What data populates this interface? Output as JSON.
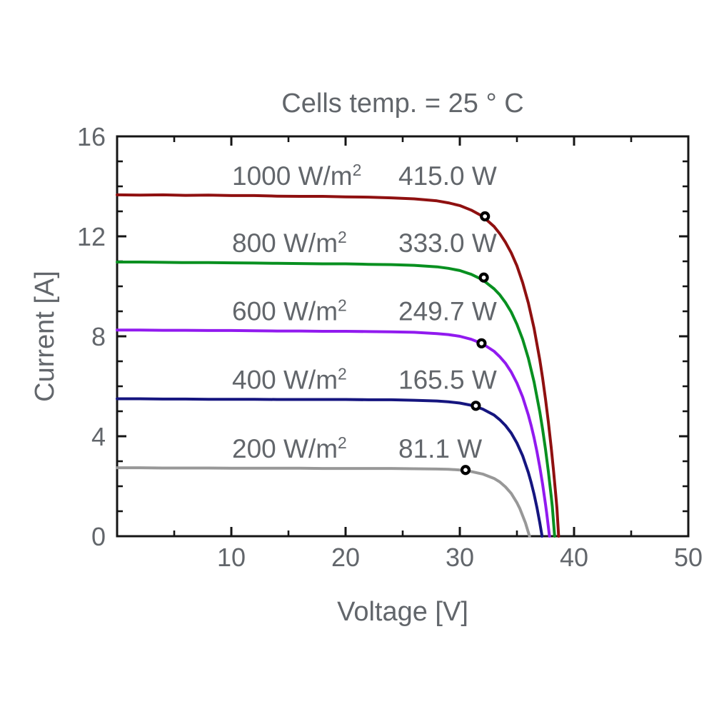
{
  "title": "Cells temp. = 25 ° C",
  "chart_data": {
    "type": "line",
    "title": "Cells temp. = 25 ° C",
    "xlabel": "Voltage [V]",
    "ylabel": "Current [A]",
    "xlim": [
      0,
      50
    ],
    "ylim": [
      0,
      16
    ],
    "xticks_major": [
      10,
      20,
      30,
      40,
      50
    ],
    "xticks_minor_step": 5,
    "yticks_major": [
      0,
      4,
      8,
      12,
      16
    ],
    "yticks_minor_step": 1,
    "grid": false,
    "text_color": "#62666b",
    "axis_color": "#151515",
    "series": [
      {
        "irradiance_label": "1000 W/m²",
        "power_label": "415.0 W",
        "color": "#8f1010",
        "isc": 13.66,
        "voc": 38.65,
        "mpp": [
          32.2,
          12.8
        ],
        "points": [
          [
            0,
            13.66
          ],
          [
            2,
            13.65
          ],
          [
            4,
            13.66
          ],
          [
            6,
            13.64
          ],
          [
            8,
            13.65
          ],
          [
            10,
            13.63
          ],
          [
            12,
            13.63
          ],
          [
            14,
            13.61
          ],
          [
            16,
            13.6
          ],
          [
            18,
            13.6
          ],
          [
            20,
            13.58
          ],
          [
            22,
            13.57
          ],
          [
            24,
            13.54
          ],
          [
            26,
            13.5
          ],
          [
            28,
            13.42
          ],
          [
            29,
            13.34
          ],
          [
            30,
            13.23
          ],
          [
            31,
            13.05
          ],
          [
            32,
            12.8
          ],
          [
            33,
            12.39
          ],
          [
            33.5,
            12.11
          ],
          [
            34,
            11.76
          ],
          [
            34.5,
            11.34
          ],
          [
            35,
            10.82
          ],
          [
            35.5,
            10.15
          ],
          [
            36,
            9.33
          ],
          [
            36.5,
            8.32
          ],
          [
            37,
            7.06
          ],
          [
            37.25,
            6.32
          ],
          [
            37.5,
            5.49
          ],
          [
            37.75,
            4.57
          ],
          [
            38,
            3.55
          ],
          [
            38.2,
            2.64
          ],
          [
            38.4,
            1.65
          ],
          [
            38.5,
            1.13
          ],
          [
            38.65,
            0
          ]
        ]
      },
      {
        "irradiance_label": "800 W/m²",
        "power_label": "333.0 W",
        "color": "#089020",
        "isc": 10.97,
        "voc": 38.3,
        "mpp": [
          32.1,
          10.35
        ],
        "points": [
          [
            0,
            10.97
          ],
          [
            2,
            10.97
          ],
          [
            4,
            10.96
          ],
          [
            6,
            10.95
          ],
          [
            8,
            10.95
          ],
          [
            10,
            10.94
          ],
          [
            12,
            10.93
          ],
          [
            14,
            10.92
          ],
          [
            16,
            10.91
          ],
          [
            18,
            10.9
          ],
          [
            20,
            10.9
          ],
          [
            22,
            10.88
          ],
          [
            24,
            10.87
          ],
          [
            26,
            10.84
          ],
          [
            28,
            10.78
          ],
          [
            29,
            10.72
          ],
          [
            30,
            10.63
          ],
          [
            31,
            10.48
          ],
          [
            32,
            10.26
          ],
          [
            33,
            9.9
          ],
          [
            33.5,
            9.66
          ],
          [
            34,
            9.35
          ],
          [
            34.5,
            8.97
          ],
          [
            35,
            8.48
          ],
          [
            35.5,
            7.88
          ],
          [
            36,
            7.12
          ],
          [
            36.5,
            6.17
          ],
          [
            37,
            4.98
          ],
          [
            37.25,
            4.27
          ],
          [
            37.5,
            3.48
          ],
          [
            37.75,
            2.59
          ],
          [
            38,
            1.6
          ],
          [
            38.1,
            1.17
          ],
          [
            38.3,
            0
          ]
        ]
      },
      {
        "irradiance_label": "600 W/m²",
        "power_label": "249.7 W",
        "color": "#911aef",
        "isc": 8.25,
        "voc": 37.85,
        "mpp": [
          31.9,
          7.72
        ],
        "points": [
          [
            0,
            8.25
          ],
          [
            2,
            8.25
          ],
          [
            4,
            8.24
          ],
          [
            6,
            8.24
          ],
          [
            8,
            8.23
          ],
          [
            10,
            8.23
          ],
          [
            12,
            8.22
          ],
          [
            14,
            8.21
          ],
          [
            16,
            8.21
          ],
          [
            18,
            8.2
          ],
          [
            20,
            8.2
          ],
          [
            22,
            8.19
          ],
          [
            24,
            8.18
          ],
          [
            26,
            8.16
          ],
          [
            28,
            8.11
          ],
          [
            29,
            8.07
          ],
          [
            30,
            8.0
          ],
          [
            31,
            7.88
          ],
          [
            32,
            7.7
          ],
          [
            33,
            7.4
          ],
          [
            33.5,
            7.18
          ],
          [
            34,
            6.92
          ],
          [
            34.5,
            6.57
          ],
          [
            35,
            6.13
          ],
          [
            35.5,
            5.57
          ],
          [
            36,
            4.85
          ],
          [
            36.25,
            4.42
          ],
          [
            36.5,
            3.94
          ],
          [
            36.75,
            3.39
          ],
          [
            37,
            2.77
          ],
          [
            37.25,
            2.07
          ],
          [
            37.5,
            1.28
          ],
          [
            37.6,
            0.94
          ],
          [
            37.85,
            0
          ]
        ]
      },
      {
        "irradiance_label": "400 W/m²",
        "power_label": "165.5 W",
        "color": "#15157f",
        "isc": 5.5,
        "voc": 37.2,
        "mpp": [
          31.4,
          5.22
        ],
        "points": [
          [
            0,
            5.5
          ],
          [
            2,
            5.5
          ],
          [
            4,
            5.49
          ],
          [
            6,
            5.49
          ],
          [
            8,
            5.48
          ],
          [
            10,
            5.48
          ],
          [
            12,
            5.48
          ],
          [
            14,
            5.47
          ],
          [
            16,
            5.47
          ],
          [
            18,
            5.47
          ],
          [
            20,
            5.47
          ],
          [
            22,
            5.46
          ],
          [
            24,
            5.46
          ],
          [
            26,
            5.44
          ],
          [
            28,
            5.41
          ],
          [
            29,
            5.38
          ],
          [
            30,
            5.33
          ],
          [
            31,
            5.24
          ],
          [
            32,
            5.09
          ],
          [
            33,
            4.85
          ],
          [
            33.5,
            4.66
          ],
          [
            34,
            4.43
          ],
          [
            34.5,
            4.13
          ],
          [
            35,
            3.73
          ],
          [
            35.5,
            3.22
          ],
          [
            36,
            2.55
          ],
          [
            36.25,
            2.14
          ],
          [
            36.5,
            1.68
          ],
          [
            36.75,
            1.15
          ],
          [
            37,
            0.54
          ],
          [
            37.2,
            0
          ]
        ]
      },
      {
        "irradiance_label": "200 W/m²",
        "power_label": "81.1 W",
        "color": "#989898",
        "isc": 2.74,
        "voc": 36.1,
        "mpp": [
          30.5,
          2.65
        ],
        "points": [
          [
            0,
            2.74
          ],
          [
            2,
            2.74
          ],
          [
            4,
            2.73
          ],
          [
            6,
            2.73
          ],
          [
            8,
            2.73
          ],
          [
            10,
            2.72
          ],
          [
            12,
            2.72
          ],
          [
            14,
            2.72
          ],
          [
            16,
            2.72
          ],
          [
            18,
            2.71
          ],
          [
            20,
            2.71
          ],
          [
            22,
            2.71
          ],
          [
            24,
            2.71
          ],
          [
            26,
            2.7
          ],
          [
            28,
            2.69
          ],
          [
            29,
            2.68
          ],
          [
            30,
            2.65
          ],
          [
            31,
            2.59
          ],
          [
            32,
            2.49
          ],
          [
            33,
            2.31
          ],
          [
            33.5,
            2.17
          ],
          [
            34,
            1.97
          ],
          [
            34.5,
            1.71
          ],
          [
            35,
            1.34
          ],
          [
            35.25,
            1.11
          ],
          [
            35.75,
            0.53
          ],
          [
            36.1,
            0
          ]
        ]
      }
    ]
  }
}
